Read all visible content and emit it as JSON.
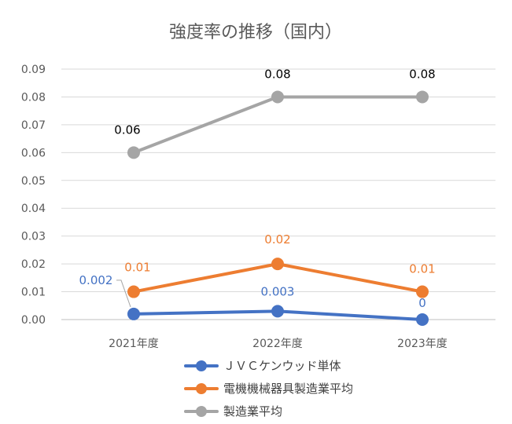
{
  "chart_data": {
    "type": "line",
    "title": "強度率の推移（国内）",
    "categories": [
      "2021年度",
      "2022年度",
      "2023年度"
    ],
    "ylim": [
      0.0,
      0.09
    ],
    "yticks": [
      "0.00",
      "0.01",
      "0.02",
      "0.03",
      "0.04",
      "0.05",
      "0.06",
      "0.07",
      "0.08",
      "0.09"
    ],
    "grid": true,
    "legend_position": "bottom",
    "series": [
      {
        "name": "ＪＶＣケンウッド単体",
        "color": "#4472C4",
        "values": [
          0.002,
          0.003,
          0.0
        ],
        "labels": [
          "0.002",
          "0.003",
          "0"
        ]
      },
      {
        "name": "電機機械器具製造業平均",
        "color": "#ED7D31",
        "values": [
          0.01,
          0.02,
          0.01
        ],
        "labels": [
          "0.01",
          "0.02",
          "0.01"
        ]
      },
      {
        "name": "製造業平均",
        "color": "#A5A5A5",
        "values": [
          0.06,
          0.08,
          0.08
        ],
        "labels": [
          "0.06",
          "0.08",
          "0.08"
        ]
      }
    ]
  }
}
